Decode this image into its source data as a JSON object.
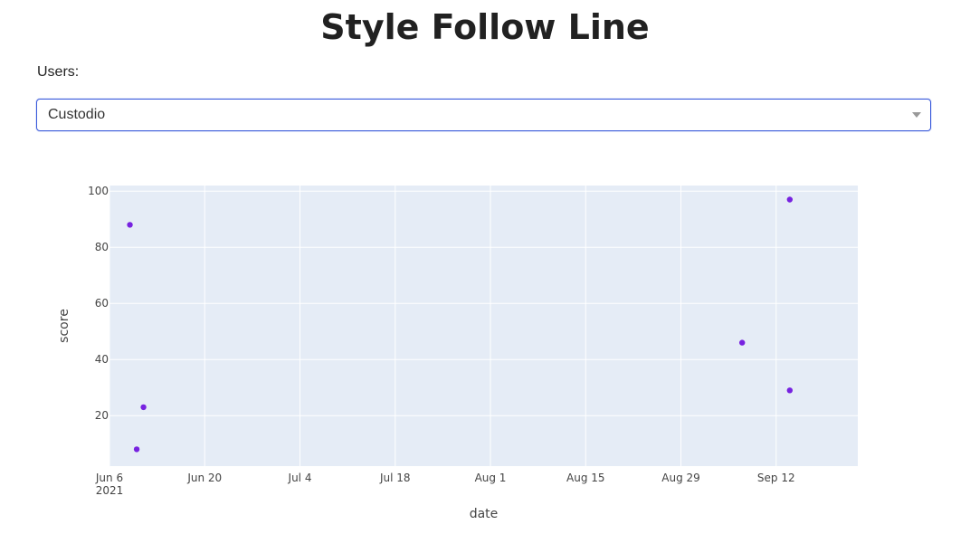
{
  "page": {
    "title": "Style Follow Line",
    "users_label": "Users:",
    "dropdown": {
      "selected": "Custodio"
    }
  },
  "colors": {
    "plot_bg": "#e5ecf6",
    "grid": "#ffffff",
    "marker": "#7722e0",
    "dropdown_border": "#3b5bdb"
  },
  "chart_data": {
    "type": "scatter",
    "xlabel": "date",
    "ylabel": "score",
    "xlim": [
      "2021-06-06",
      "2021-09-24"
    ],
    "ylim": [
      2,
      102
    ],
    "x_ticks": [
      {
        "date": "2021-06-06",
        "label": "Jun 6",
        "sublabel": "2021"
      },
      {
        "date": "2021-06-20",
        "label": "Jun 20"
      },
      {
        "date": "2021-07-04",
        "label": "Jul 4"
      },
      {
        "date": "2021-07-18",
        "label": "Jul 18"
      },
      {
        "date": "2021-08-01",
        "label": "Aug 1"
      },
      {
        "date": "2021-08-15",
        "label": "Aug 15"
      },
      {
        "date": "2021-08-29",
        "label": "Aug 29"
      },
      {
        "date": "2021-09-12",
        "label": "Sep 12"
      }
    ],
    "y_ticks": [
      20,
      40,
      60,
      80,
      100
    ],
    "grid": true,
    "points": [
      {
        "x": "2021-06-09",
        "y": 88
      },
      {
        "x": "2021-06-10",
        "y": 8
      },
      {
        "x": "2021-06-11",
        "y": 23
      },
      {
        "x": "2021-09-07",
        "y": 46
      },
      {
        "x": "2021-09-14",
        "y": 97
      },
      {
        "x": "2021-09-14",
        "y": 29
      }
    ]
  }
}
